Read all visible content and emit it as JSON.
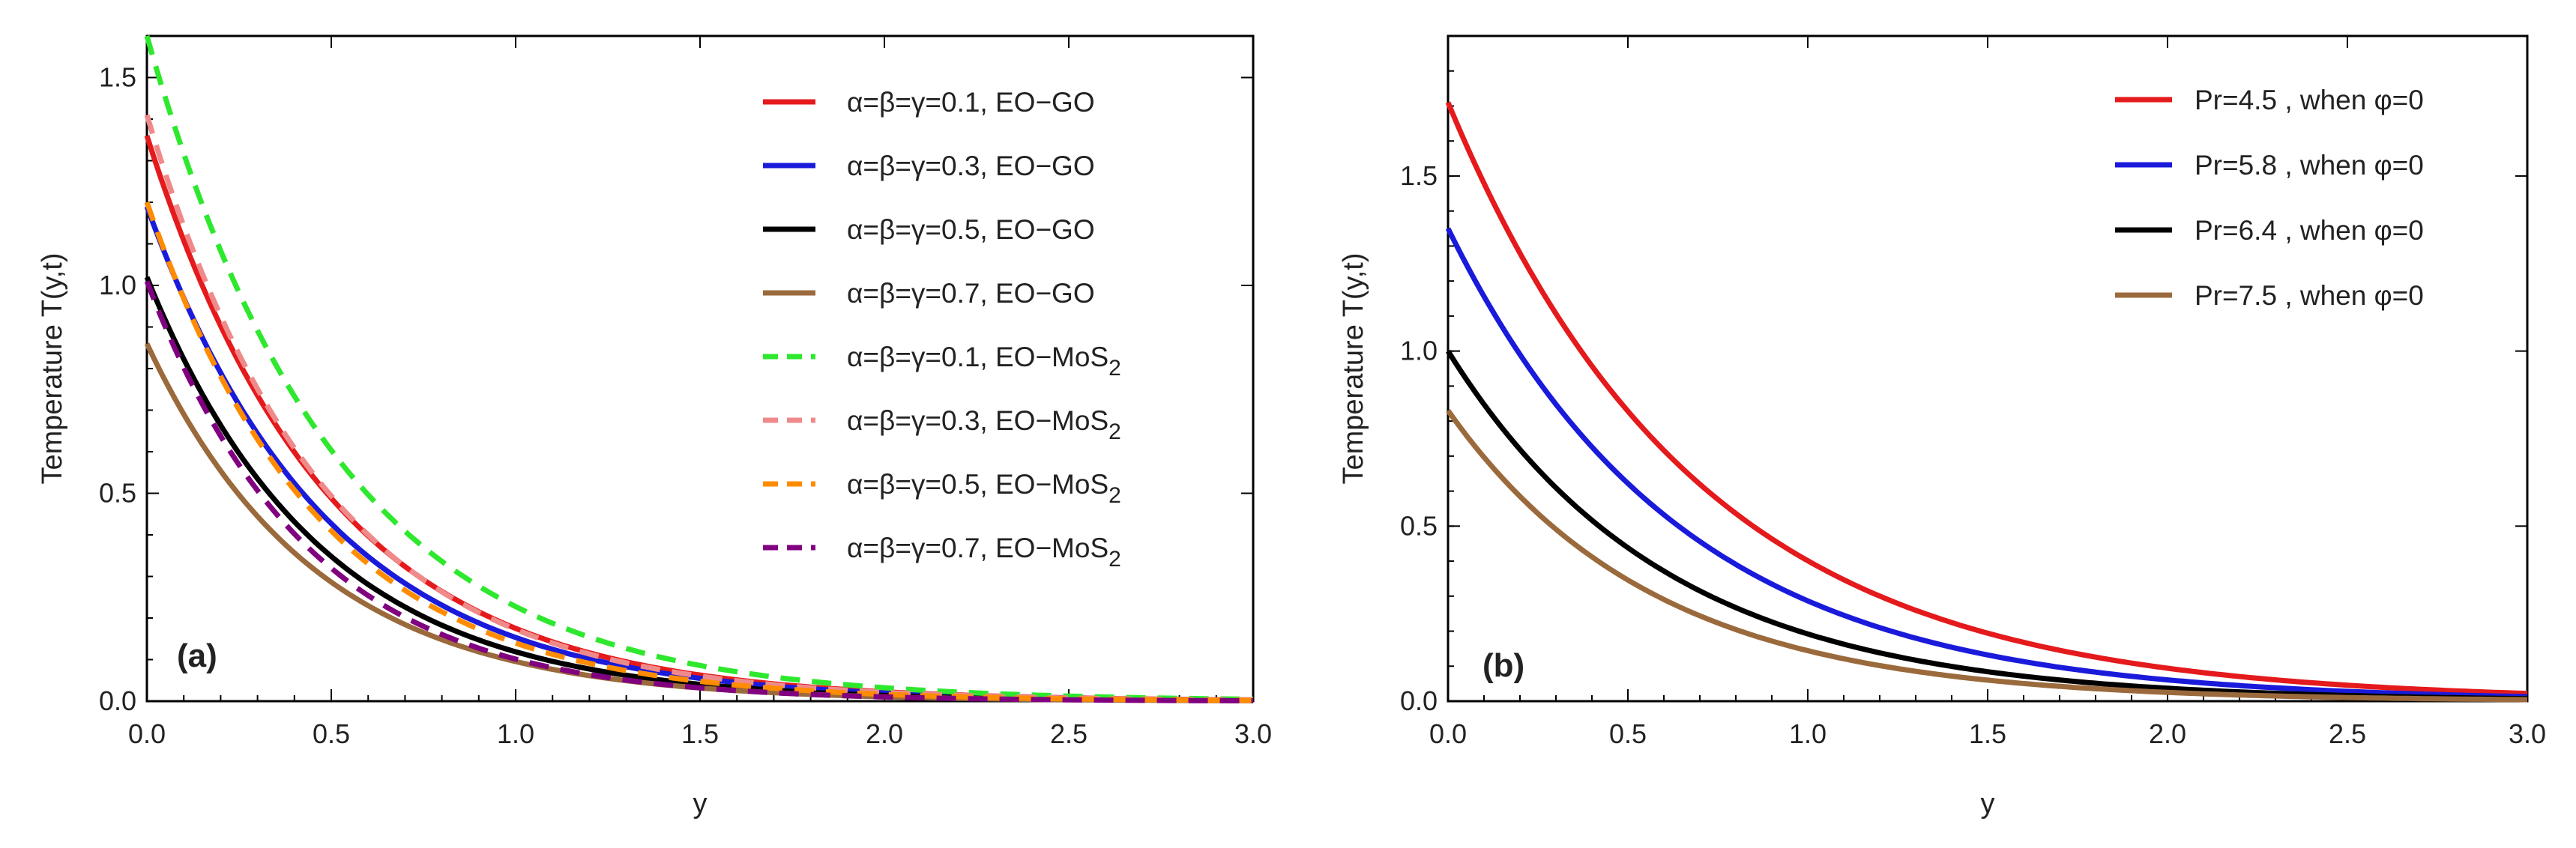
{
  "chart_data": [
    {
      "type": "line",
      "panel_label": "(a)",
      "xlabel": "y",
      "ylabel": "Temperature T(y,t)",
      "xlim": [
        0,
        3
      ],
      "ylim": [
        0,
        1.6
      ],
      "x_ticks": [
        "0.0",
        "0.5",
        "1.0",
        "1.5",
        "2.0",
        "2.5",
        "3.0"
      ],
      "y_ticks": [
        "0.0",
        "0.5",
        "1.0",
        "1.5"
      ],
      "x_tick_values": [
        0,
        0.5,
        1,
        1.5,
        2,
        2.5,
        3
      ],
      "y_tick_values": [
        0,
        0.5,
        1,
        1.5
      ],
      "legend_position": "top-right",
      "series": [
        {
          "name": "α=β=γ=0.1, EO−GO",
          "legend_main": "α=β=γ=0.1, EO−GO",
          "legend_sub": "",
          "color": "#e41a1c",
          "dash": "solid",
          "y0": 1.36,
          "decay": 2.05
        },
        {
          "name": "α=β=γ=0.3, EO−GO",
          "legend_main": "α=β=γ=0.3, EO−GO",
          "legend_sub": "",
          "color": "#1a1adb",
          "dash": "solid",
          "y0": 1.19,
          "decay": 2.05
        },
        {
          "name": "α=β=γ=0.5, EO−GO",
          "legend_main": "α=β=γ=0.5, EO−GO",
          "legend_sub": "",
          "color": "#000000",
          "dash": "solid",
          "y0": 1.02,
          "decay": 2.15
        },
        {
          "name": "α=β=γ=0.7, EO−GO",
          "legend_main": "α=β=γ=0.7, EO−GO",
          "legend_sub": "",
          "color": "#9b6a3c",
          "dash": "solid",
          "y0": 0.86,
          "decay": 2.2
        },
        {
          "name": "α=β=γ=0.1, EO−MoS2",
          "legend_main": "α=β=γ=0.1, EO−MoS",
          "legend_sub": "2",
          "color": "#2ee82e",
          "dash": "dashed",
          "y0": 1.6,
          "decay": 1.95
        },
        {
          "name": "α=β=γ=0.3, EO−MoS2",
          "legend_main": "α=β=γ=0.3, EO−MoS",
          "legend_sub": "2",
          "color": "#f08a8a",
          "dash": "dashed",
          "y0": 1.41,
          "decay": 2.1
        },
        {
          "name": "α=β=γ=0.5, EO−MoS2",
          "legend_main": "α=β=γ=0.5, EO−MoS",
          "legend_sub": "2",
          "color": "#ff8c00",
          "dash": "dashed",
          "y0": 1.2,
          "decay": 2.15
        },
        {
          "name": "α=β=γ=0.7, EO−MoS2",
          "legend_main": "α=β=γ=0.7, EO−MoS",
          "legend_sub": "2",
          "color": "#800080",
          "dash": "dashed",
          "y0": 1.01,
          "decay": 2.3
        }
      ]
    },
    {
      "type": "line",
      "panel_label": "(b)",
      "xlabel": "y",
      "ylabel": "Temperature T(y,t)",
      "xlim": [
        0,
        3
      ],
      "ylim": [
        0,
        1.9
      ],
      "x_ticks": [
        "0.0",
        "0.5",
        "1.0",
        "1.5",
        "2.0",
        "2.5",
        "3.0"
      ],
      "y_ticks": [
        "0.0",
        "0.5",
        "1.0",
        "1.5"
      ],
      "x_tick_values": [
        0,
        0.5,
        1,
        1.5,
        2,
        2.5,
        3
      ],
      "y_tick_values": [
        0,
        0.5,
        1,
        1.5
      ],
      "legend_position": "top-right",
      "series": [
        {
          "name": "Pr=4.5 , when φ=0",
          "legend_main": "Pr=4.5 , when φ=0",
          "legend_sub": "",
          "color": "#e41a1c",
          "dash": "solid",
          "y0": 1.71,
          "decay": 1.45
        },
        {
          "name": "Pr=5.8 , when φ=0",
          "legend_main": "Pr=5.8 , when φ=0",
          "legend_sub": "",
          "color": "#1a1adb",
          "dash": "solid",
          "y0": 1.35,
          "decay": 1.55
        },
        {
          "name": "Pr=6.4 , when φ=0",
          "legend_main": "Pr=6.4 , when φ=0",
          "legend_sub": "",
          "color": "#000000",
          "dash": "solid",
          "y0": 1.0,
          "decay": 1.65
        },
        {
          "name": "Pr=7.5 , when φ=0",
          "legend_main": "Pr=7.5 , when φ=0",
          "legend_sub": "",
          "color": "#9b6a3c",
          "dash": "solid",
          "y0": 0.83,
          "decay": 1.75
        }
      ]
    }
  ]
}
